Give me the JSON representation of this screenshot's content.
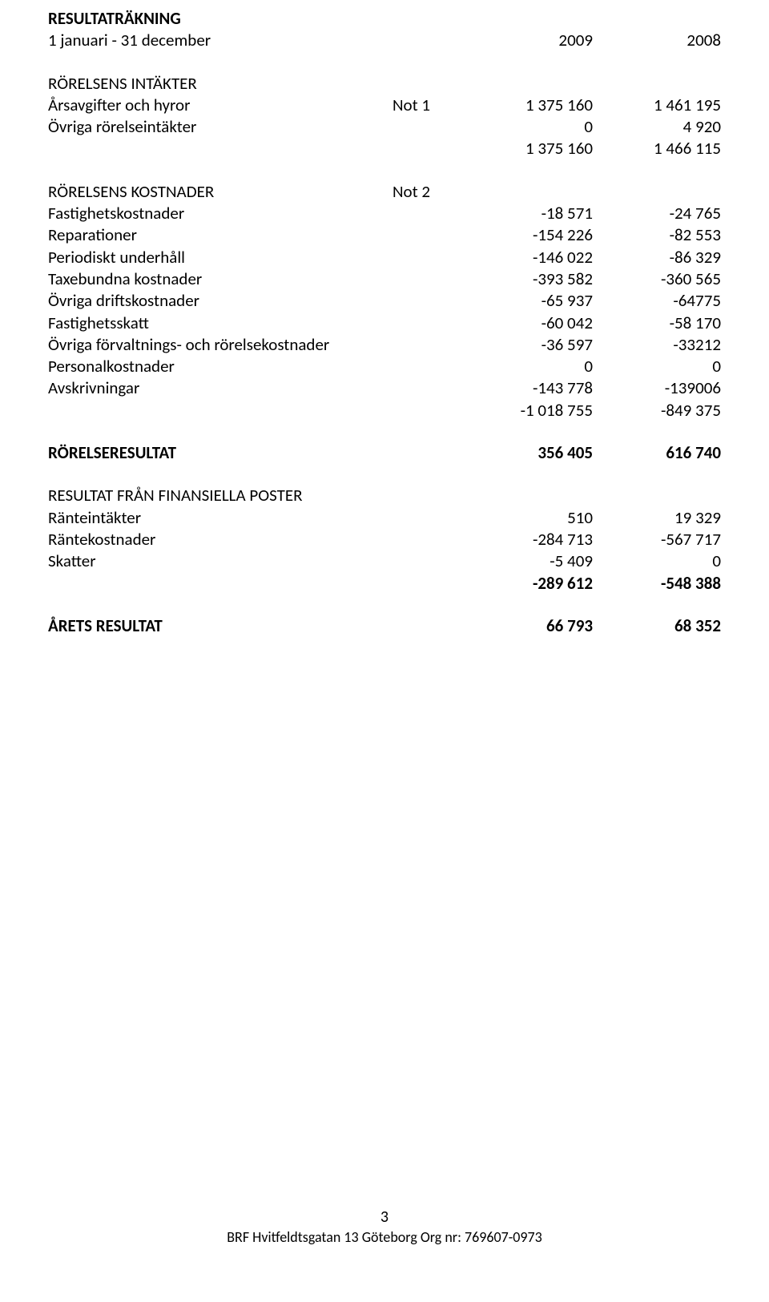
{
  "header": {
    "title": "RESULTATRÄKNING",
    "period": "1 januari - 31 december",
    "year1": "2009",
    "year2": "2008"
  },
  "sections": {
    "intakter_header": "RÖRELSENS INTÄKTER",
    "arsavgifter": {
      "label": "Årsavgifter och hyror",
      "note": "Not 1",
      "v1": "1 375 160",
      "v2": "1 461 195"
    },
    "ovriga_rorelse": {
      "label": "Övriga rörelseintäkter",
      "v1": "0",
      "v2": "4 920"
    },
    "intakter_sum": {
      "v1": "1 375 160",
      "v2": "1 466 115"
    },
    "kostnader_header": {
      "label": "RÖRELSENS KOSTNADER",
      "note": "Not 2"
    },
    "fastighetskostnader": {
      "label": "Fastighetskostnader",
      "v1": "-18 571",
      "v2": "-24 765"
    },
    "reparationer": {
      "label": "Reparationer",
      "v1": "-154 226",
      "v2": "-82 553"
    },
    "periodiskt": {
      "label": "Periodiskt underhåll",
      "v1": "-146 022",
      "v2": "-86 329"
    },
    "taxebundna": {
      "label": "Taxebundna kostnader",
      "v1": "-393 582",
      "v2": "-360 565"
    },
    "ovriga_drift": {
      "label": "Övriga driftskostnader",
      "v1": "-65 937",
      "v2": "-64775"
    },
    "fastighetsskatt": {
      "label": "Fastighetsskatt",
      "v1": "-60 042",
      "v2": "-58 170"
    },
    "ovriga_forv": {
      "label": "Övriga förvaltnings- och rörelsekostnader",
      "v1": "-36 597",
      "v2": "-33212"
    },
    "personal": {
      "label": "Personalkostnader",
      "v1": "0",
      "v2": "0"
    },
    "avskrivningar": {
      "label": "Avskrivningar",
      "v1": "-143 778",
      "v2": "-139006"
    },
    "kostnader_sum": {
      "v1": "-1 018 755",
      "v2": "-849 375"
    },
    "rorelseresultat": {
      "label": "RÖRELSERESULTAT",
      "v1": "356 405",
      "v2": "616 740"
    },
    "finans_header": "RESULTAT FRÅN FINANSIELLA POSTER",
    "ranteintakter": {
      "label": "Ränteintäkter",
      "v1": "510",
      "v2": "19 329"
    },
    "rantekostnader": {
      "label": "Räntekostnader",
      "v1": "-284 713",
      "v2": "-567 717"
    },
    "skatter": {
      "label": "Skatter",
      "v1": "-5 409",
      "v2": "0"
    },
    "finans_sum": {
      "v1": "-289 612",
      "v2": "-548 388"
    },
    "aretsresultat": {
      "label": "ÅRETS RESULTAT",
      "v1": "66 793",
      "v2": "68 352"
    }
  },
  "footer": {
    "page": "3",
    "org": "BRF Hvitfeldtsgatan 13 Göteborg Org nr: 769607-0973"
  }
}
